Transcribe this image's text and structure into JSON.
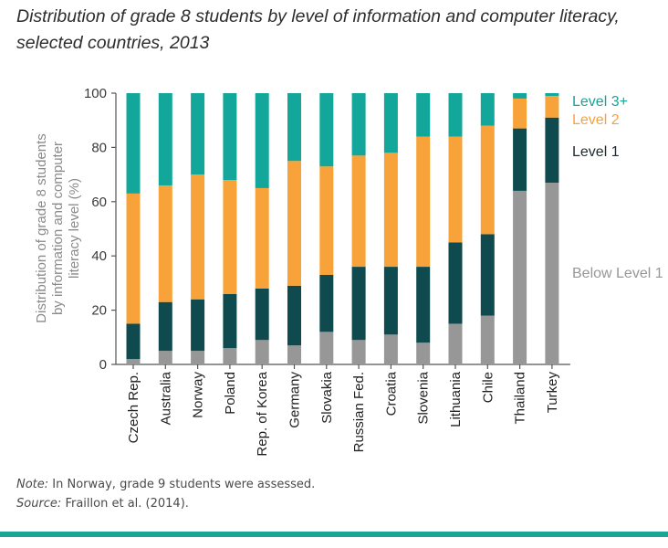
{
  "header": {
    "title_line1": "Distribution of grade 8 students by level of information and computer literacy,",
    "title_line2": "selected countries, 2013"
  },
  "notes": {
    "note_label": "Note:",
    "note_text": " In Norway, grade 9 students were assessed.",
    "source_label": "Source:",
    "source_text": " Fraillon et al. (2014)."
  },
  "chart_data": {
    "type": "bar",
    "stacked": true,
    "title": "Distribution of grade 8 students by level of information and computer literacy, selected countries, 2013",
    "ylabel": "Distribution of grade 8 students by information and computer literacy level (%)",
    "ylabel_lines": [
      "Distribution of grade 8 students",
      "by information and computer",
      "literacy level (%)"
    ],
    "ylim": [
      0,
      100
    ],
    "yticks": [
      0,
      20,
      40,
      60,
      80,
      100
    ],
    "grid": false,
    "legend": "right",
    "categories": [
      "Czech Rep.",
      "Australia",
      "Norway",
      "Poland",
      "Rep. of Korea",
      "Germany",
      "Slovakia",
      "Russian Fed.",
      "Croatia",
      "Slovenia",
      "Lithuania",
      "Chile",
      "Thailand",
      "Turkey"
    ],
    "series": [
      {
        "name": "Below Level 1",
        "color": "#979797",
        "values": [
          2,
          5,
          5,
          6,
          9,
          7,
          12,
          9,
          11,
          8,
          15,
          18,
          64,
          67
        ]
      },
      {
        "name": "Level 1",
        "color": "#0e4a4e",
        "values": [
          13,
          18,
          19,
          20,
          19,
          22,
          21,
          27,
          25,
          28,
          30,
          30,
          23,
          24
        ]
      },
      {
        "name": "Level 2",
        "color": "#f7a33a",
        "values": [
          48,
          43,
          46,
          42,
          37,
          46,
          40,
          41,
          42,
          48,
          39,
          40,
          11,
          8
        ]
      },
      {
        "name": "Level 3+",
        "color": "#12a79a",
        "values": [
          37,
          34,
          30,
          32,
          35,
          25,
          27,
          23,
          22,
          16,
          16,
          12,
          2,
          1
        ]
      }
    ]
  }
}
